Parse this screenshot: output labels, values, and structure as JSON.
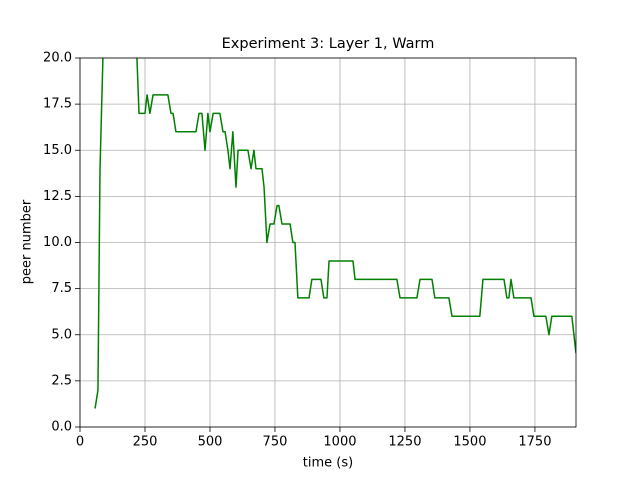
{
  "chart_data": {
    "type": "line",
    "title": "Experiment 3: Layer 1, Warm",
    "x_label": "time (s)",
    "y_label": "peer number",
    "color": "#008000",
    "grid": true,
    "x": [
      58,
      69,
      77,
      90,
      210,
      219,
      227,
      250,
      258,
      269,
      281,
      338,
      350,
      358,
      369,
      446,
      458,
      469,
      481,
      492,
      500,
      512,
      538,
      550,
      558,
      569,
      577,
      588,
      600,
      608,
      646,
      658,
      669,
      677,
      700,
      708,
      719,
      731,
      746,
      758,
      765,
      777,
      808,
      819,
      827,
      838,
      881,
      892,
      927,
      938,
      950,
      958,
      1050,
      1058,
      1219,
      1231,
      1296,
      1308,
      1354,
      1365,
      1419,
      1431,
      1538,
      1550,
      1631,
      1642,
      1650,
      1658,
      1669,
      1735,
      1746,
      1792,
      1804,
      1815,
      1892,
      1908
    ],
    "values": [
      1,
      2,
      14,
      21,
      21,
      20,
      17,
      17,
      18,
      17,
      18,
      18,
      17,
      17,
      16,
      16,
      17,
      17,
      15,
      17,
      16,
      17,
      17,
      16,
      16,
      15,
      14,
      16,
      13,
      15,
      15,
      14,
      15,
      14,
      14,
      13,
      10,
      11,
      11,
      12,
      12,
      11,
      11,
      10,
      10,
      7,
      7,
      8,
      8,
      7,
      7,
      9,
      9,
      8,
      8,
      7,
      7,
      8,
      8,
      7,
      7,
      6,
      6,
      8,
      8,
      7,
      7,
      8,
      7,
      7,
      6,
      6,
      5,
      6,
      6,
      4
    ],
    "xlim": [
      0,
      1908
    ],
    "ylim": [
      0,
      20
    ],
    "xticks": [
      0,
      250,
      500,
      750,
      1000,
      1250,
      1500,
      1750
    ],
    "yticks": [
      {
        "value": 0,
        "label": "0.0"
      },
      2.5,
      {
        "value": 5,
        "label": "5.0"
      },
      7.5,
      {
        "value": 10,
        "label": "10.0"
      },
      12.5,
      {
        "value": 15,
        "label": "15.0"
      },
      17.5,
      {
        "value": 20,
        "label": "20.0"
      }
    ]
  }
}
